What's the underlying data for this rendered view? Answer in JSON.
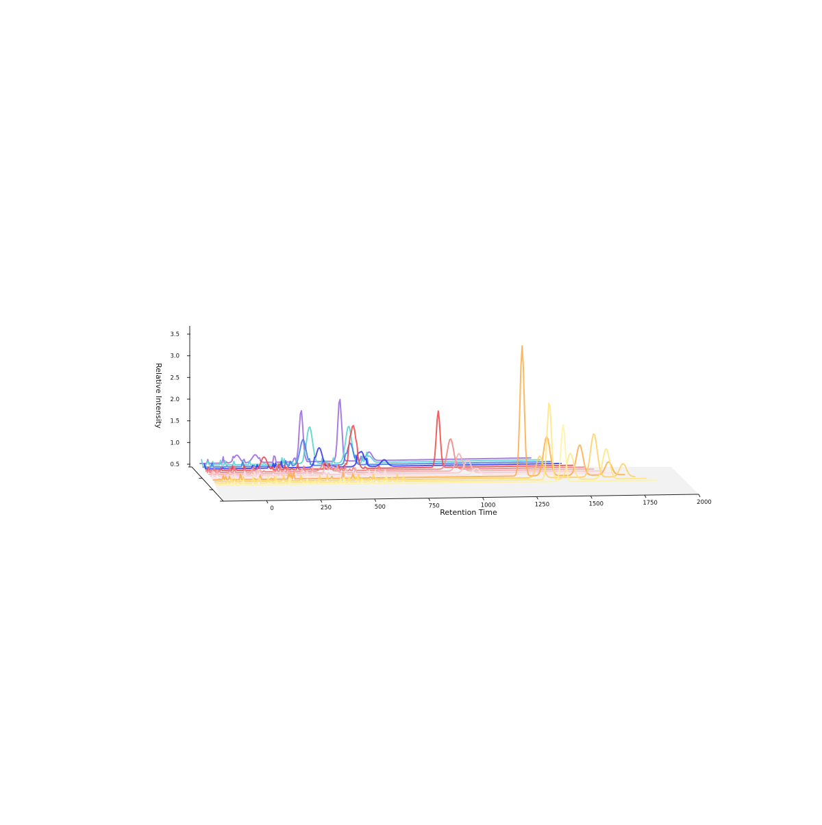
{
  "chart_data": {
    "type": "line",
    "title": "",
    "xlabel": "Retention Time",
    "ylabel": "Relative Intensity",
    "xlim": [
      -200,
      2000
    ],
    "ylim": [
      0.4,
      3.6
    ],
    "x_ticks": [
      0,
      250,
      500,
      750,
      1000,
      1250,
      1500,
      1750,
      2000
    ],
    "y_ticks": [
      0.5,
      1.0,
      1.5,
      2.0,
      2.5,
      3.0,
      3.5
    ],
    "x_tick_labels": [
      "0",
      "250",
      "500",
      "750",
      "1000",
      "1250",
      "1500",
      "1750",
      "2000"
    ],
    "y_tick_labels": [
      "0.5",
      "1.0",
      "1.5",
      "2.0",
      "2.5",
      "3.0",
      "3.5"
    ],
    "grid": false,
    "series": [
      {
        "color": "#9966dd",
        "x_end": 1600,
        "peaks": [
          [
            0,
            0.18
          ],
          [
            100,
            0.18
          ],
          [
            350,
            1.2
          ],
          [
            560,
            1.45
          ],
          [
            720,
            0.2
          ]
        ]
      },
      {
        "color": "#55d0cc",
        "x_end": 1620,
        "peaks": [
          [
            380,
            0.85
          ],
          [
            590,
            0.85
          ],
          [
            700,
            0.15
          ]
        ]
      },
      {
        "color": "#3a7be8",
        "x_end": 1650,
        "peaks": [
          [
            330,
            0.6
          ],
          [
            580,
            0.5
          ]
        ]
      },
      {
        "color": "#3333ee",
        "x_end": 1670,
        "peaks": [
          [
            400,
            0.45
          ],
          [
            620,
            0.35
          ],
          [
            740,
            0.15
          ]
        ]
      },
      {
        "color": "#ee4444",
        "x_end": 1700,
        "peaks": [
          [
            100,
            0.3
          ],
          [
            560,
            1.0
          ],
          [
            1000,
            1.3
          ]
        ]
      },
      {
        "color": "#f08080",
        "x_end": 1720,
        "peaks": [
          [
            400,
            0.2
          ],
          [
            1040,
            0.7
          ]
        ]
      },
      {
        "color": "#f4aaaa",
        "x_end": 1740,
        "peaks": [
          [
            420,
            0.15
          ],
          [
            1060,
            0.4
          ]
        ]
      },
      {
        "color": "#f8c8d0",
        "x_end": 1760,
        "peaks": [
          [
            1080,
            0.3
          ]
        ]
      },
      {
        "color": "#fde0e4",
        "x_end": 1780,
        "peaks": [
          [
            1100,
            0.15
          ]
        ]
      },
      {
        "color": "#ffaa44",
        "x_end": 1800,
        "peaks": [
          [
            1300,
            3.0
          ],
          [
            1420,
            0.9
          ],
          [
            1580,
            0.7
          ],
          [
            1720,
            0.3
          ]
        ]
      },
      {
        "color": "#ffd060",
        "x_end": 1820,
        "peaks": [
          [
            1360,
            0.5
          ],
          [
            1620,
            1.0
          ],
          [
            1760,
            0.3
          ],
          [
            1880,
            0.2
          ]
        ]
      },
      {
        "color": "#ffe680",
        "x_end": 1840,
        "peaks": [
          [
            1380,
            1.8
          ],
          [
            1480,
            0.6
          ],
          [
            1650,
            0.7
          ]
        ]
      },
      {
        "color": "#fff3a0",
        "x_end": 1860,
        "peaks": [
          [
            1420,
            1.3
          ],
          [
            1900,
            0.15
          ]
        ]
      }
    ]
  }
}
